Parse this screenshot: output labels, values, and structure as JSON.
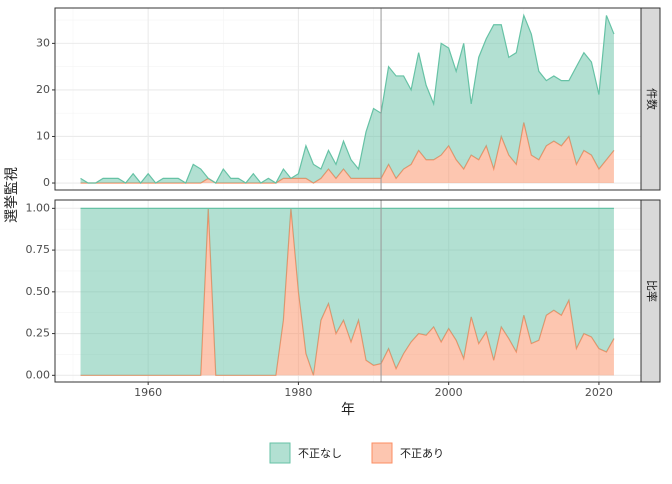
{
  "chart_data": [
    {
      "type": "area",
      "strip": "件数",
      "ylabel": "選挙監視",
      "x": [
        1951,
        1952,
        1953,
        1954,
        1955,
        1956,
        1957,
        1958,
        1959,
        1960,
        1961,
        1962,
        1963,
        1964,
        1965,
        1966,
        1967,
        1968,
        1969,
        1970,
        1971,
        1972,
        1973,
        1974,
        1975,
        1976,
        1977,
        1978,
        1979,
        1980,
        1981,
        1982,
        1983,
        1984,
        1985,
        1986,
        1987,
        1988,
        1989,
        1990,
        1991,
        1992,
        1993,
        1994,
        1995,
        1996,
        1997,
        1998,
        1999,
        2000,
        2001,
        2002,
        2003,
        2004,
        2005,
        2006,
        2007,
        2008,
        2009,
        2010,
        2011,
        2012,
        2013,
        2014,
        2015,
        2016,
        2017,
        2018,
        2019,
        2020,
        2021,
        2022
      ],
      "series": [
        {
          "name": "不正なし",
          "color": "#66c2a5",
          "values": [
            1,
            0,
            0,
            1,
            1,
            1,
            0,
            2,
            0,
            2,
            0,
            1,
            1,
            1,
            0,
            4,
            3,
            0,
            0,
            3,
            1,
            1,
            0,
            2,
            0,
            1,
            0,
            2,
            0,
            1,
            7,
            4,
            2,
            4,
            3,
            6,
            4,
            2,
            10,
            15,
            14,
            21,
            22,
            20,
            16,
            21,
            16,
            12,
            24,
            21,
            19,
            27,
            11,
            22,
            23,
            31,
            24,
            21,
            24,
            23,
            26,
            19,
            14,
            14,
            14,
            12,
            21,
            21,
            20,
            16,
            31,
            25
          ]
        },
        {
          "name": "不正あり",
          "color": "#fc8d62",
          "values": [
            0,
            0,
            0,
            0,
            0,
            0,
            0,
            0,
            0,
            0,
            0,
            0,
            0,
            0,
            0,
            0,
            0,
            1,
            0,
            0,
            0,
            0,
            0,
            0,
            0,
            0,
            0,
            1,
            1,
            1,
            1,
            0,
            1,
            3,
            1,
            3,
            1,
            1,
            1,
            1,
            1,
            4,
            1,
            3,
            4,
            7,
            5,
            5,
            6,
            8,
            5,
            3,
            6,
            5,
            8,
            3,
            10,
            6,
            4,
            13,
            6,
            5,
            8,
            9,
            8,
            10,
            4,
            7,
            6,
            3,
            5,
            7
          ]
        }
      ],
      "xlim": [
        1947.6,
        2025.6
      ],
      "xticks": [
        1960,
        1980,
        2000,
        2020
      ],
      "ylim": [
        -1.5,
        37.6
      ],
      "yticks": [
        0,
        10,
        20,
        30
      ],
      "vline": 1991,
      "grid": true
    },
    {
      "type": "area",
      "strip": "比率",
      "xlabel": "年",
      "x": [
        1951,
        1952,
        1953,
        1954,
        1955,
        1956,
        1957,
        1958,
        1959,
        1960,
        1961,
        1962,
        1963,
        1964,
        1965,
        1966,
        1967,
        1968,
        1969,
        1970,
        1971,
        1972,
        1973,
        1974,
        1975,
        1976,
        1977,
        1978,
        1979,
        1980,
        1981,
        1982,
        1983,
        1984,
        1985,
        1986,
        1987,
        1988,
        1989,
        1990,
        1991,
        1992,
        1993,
        1994,
        1995,
        1996,
        1997,
        1998,
        1999,
        2000,
        2001,
        2002,
        2003,
        2004,
        2005,
        2006,
        2007,
        2008,
        2009,
        2010,
        2011,
        2012,
        2013,
        2014,
        2015,
        2016,
        2017,
        2018,
        2019,
        2020,
        2021,
        2022
      ],
      "series": [
        {
          "name": "不正なし",
          "color": "#66c2a5",
          "values": [
            1,
            1,
            1,
            1,
            1,
            1,
            1,
            1,
            1,
            1,
            1,
            1,
            1,
            1,
            1,
            1,
            1,
            0,
            1,
            1,
            1,
            1,
            1,
            1,
            1,
            1,
            1,
            0.67,
            0,
            0.5,
            0.87,
            1,
            0.67,
            0.57,
            0.75,
            0.67,
            0.8,
            0.67,
            0.91,
            0.94,
            0.93,
            0.84,
            0.96,
            0.87,
            0.8,
            0.75,
            0.76,
            0.71,
            0.8,
            0.72,
            0.79,
            0.9,
            0.65,
            0.81,
            0.74,
            0.91,
            0.71,
            0.78,
            0.86,
            0.64,
            0.81,
            0.79,
            0.64,
            0.61,
            0.64,
            0.55,
            0.84,
            0.75,
            0.77,
            0.84,
            0.86,
            0.78
          ]
        },
        {
          "name": "不正あり",
          "color": "#fc8d62",
          "values": [
            0,
            0,
            0,
            0,
            0,
            0,
            0,
            0,
            0,
            0,
            0,
            0,
            0,
            0,
            0,
            0,
            0,
            1,
            0,
            0,
            0,
            0,
            0,
            0,
            0,
            0,
            0,
            0.33,
            1,
            0.5,
            0.13,
            0,
            0.33,
            0.43,
            0.25,
            0.33,
            0.2,
            0.33,
            0.09,
            0.06,
            0.07,
            0.16,
            0.04,
            0.13,
            0.2,
            0.25,
            0.24,
            0.29,
            0.2,
            0.28,
            0.21,
            0.1,
            0.35,
            0.19,
            0.26,
            0.09,
            0.29,
            0.22,
            0.14,
            0.36,
            0.19,
            0.21,
            0.36,
            0.39,
            0.36,
            0.45,
            0.16,
            0.25,
            0.23,
            0.16,
            0.14,
            0.22
          ]
        }
      ],
      "xlim": [
        1947.6,
        2025.6
      ],
      "xticks": [
        1960,
        1980,
        2000,
        2020
      ],
      "ylim": [
        -0.04,
        1.05
      ],
      "yticks": [
        {
          "value": 0,
          "label": "0.00"
        },
        {
          "value": 0.25,
          "label": "0.25"
        },
        {
          "value": 0.5,
          "label": "0.50"
        },
        {
          "value": 0.75,
          "label": "0.75"
        },
        {
          "value": 1,
          "label": "1.00"
        }
      ],
      "vline": 1991,
      "grid": true
    }
  ]
}
